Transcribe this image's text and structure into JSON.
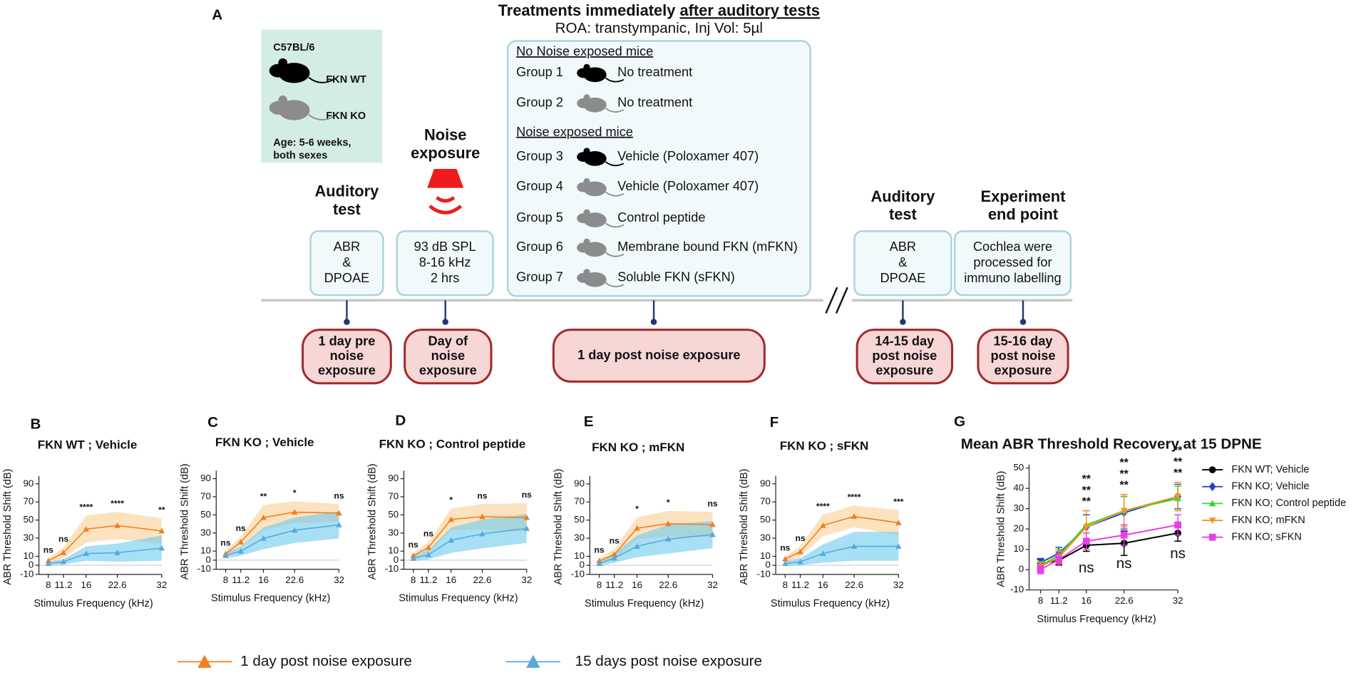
{
  "diagram": {
    "panel": "A",
    "strain": {
      "title": "C57BL/6",
      "wt": "FKN WT",
      "ko": "FKN KO",
      "age": [
        "Age: 5-6 weeks,",
        "both sexes"
      ]
    },
    "pre_test": {
      "heading": [
        "Auditory",
        "test"
      ],
      "box": [
        "ABR",
        "&",
        "DPOAE"
      ],
      "time": [
        "1 day pre",
        "noise",
        "exposure"
      ]
    },
    "noise": {
      "heading": [
        "Noise",
        "exposure"
      ],
      "box": [
        "93 dB SPL",
        "8-16 kHz",
        "2 hrs"
      ],
      "time": [
        "Day of",
        "noise",
        "exposure"
      ]
    },
    "treatments": {
      "title": "Treatments immediately",
      "title_underlined": "after auditory tests",
      "subtitle": "ROA: transtympanic, Inj Vol: 5µl",
      "sections": [
        {
          "heading": "No Noise exposed mice",
          "groups": [
            {
              "label": "Group 1",
              "treatment": "No treatment",
              "mouse": "#000000"
            },
            {
              "label": "Group 2",
              "treatment": "No treatment",
              "mouse": "#8c8c8c"
            }
          ]
        },
        {
          "heading": "Noise exposed mice",
          "groups": [
            {
              "label": "Group 3",
              "treatment": "Vehicle (Poloxamer 407)",
              "mouse": "#000000"
            },
            {
              "label": "Group 4",
              "treatment": "Vehicle (Poloxamer 407)",
              "mouse": "#8c8c8c"
            },
            {
              "label": "Group 5",
              "treatment": "Control peptide",
              "mouse": "#8c8c8c"
            },
            {
              "label": "Group 6",
              "treatment": "Membrane bound FKN (mFKN)",
              "mouse": "#8c8c8c"
            },
            {
              "label": "Group 7",
              "treatment": "Soluble FKN (sFKN)",
              "mouse": "#8c8c8c"
            }
          ]
        }
      ],
      "time": "1 day post noise exposure"
    },
    "post_test": {
      "heading": [
        "Auditory",
        "test"
      ],
      "box": [
        "ABR",
        "&",
        "DPOAE"
      ],
      "time": [
        "14-15 day",
        "post noise",
        "exposure"
      ]
    },
    "end": {
      "heading": [
        "Experiment",
        "end point"
      ],
      "box": [
        "Cochlea were",
        "processed for",
        "immuno labelling"
      ],
      "time": [
        "15-16 day",
        "post noise",
        "exposure"
      ]
    }
  },
  "legend": [
    {
      "name": "1 day post noise exposure",
      "color": "#f07f1f"
    },
    {
      "name": "15 days post noise exposure",
      "color": "#5aa7dd"
    }
  ],
  "chart_data": [
    {
      "type": "line",
      "panel": "B",
      "title": "FKN WT ; Vehicle",
      "x_label": "Stimulus Frequency (kHz)",
      "y_label": "ABR Threshold Shift (dB)",
      "x": [
        8,
        11.2,
        16,
        22.6,
        32
      ],
      "xlim": [
        6,
        32
      ],
      "xticks": [
        8,
        11.2,
        16,
        22.6,
        32
      ],
      "ylim": [
        -10,
        95
      ],
      "yticks": [
        -10,
        0,
        10,
        30,
        50,
        70,
        90
      ],
      "series": [
        {
          "color": "#f07f1f",
          "band": "#fbcf95",
          "values": [
            5,
            14,
            40,
            44,
            38
          ],
          "errors": [
            3,
            6,
            15,
            15,
            14
          ]
        },
        {
          "color": "#5aa7dd",
          "band": "#6ccbef",
          "values": [
            2,
            4,
            13,
            14,
            19
          ],
          "errors": [
            2,
            3,
            8,
            10,
            14
          ]
        }
      ],
      "significance": [
        "ns",
        "ns",
        "****",
        "****",
        "**"
      ]
    },
    {
      "type": "line",
      "panel": "C",
      "title": "FKN KO ; Vehicle",
      "x_label": "Stimulus Frequency (kHz)",
      "y_label": "ABR Threshold Shift (dB)",
      "x": [
        8,
        11.2,
        16,
        22.6,
        32
      ],
      "xlim": [
        6,
        32
      ],
      "xticks": [
        8,
        11.2,
        16,
        22.6,
        32
      ],
      "ylim": [
        -10,
        95
      ],
      "yticks": [
        -10,
        0,
        10,
        30,
        50,
        70,
        90
      ],
      "series": [
        {
          "color": "#f07f1f",
          "band": "#fbcf95",
          "values": [
            7,
            20,
            47,
            53,
            52
          ],
          "errors": [
            3,
            6,
            14,
            12,
            10
          ]
        },
        {
          "color": "#5aa7dd",
          "band": "#6ccbef",
          "values": [
            5,
            10,
            24,
            33,
            39
          ],
          "errors": [
            3,
            5,
            12,
            14,
            15
          ]
        }
      ],
      "significance": [
        "ns",
        "ns",
        "**",
        "*",
        "ns"
      ]
    },
    {
      "type": "line",
      "panel": "D",
      "title": "FKN KO ; Control peptide",
      "x_label": "Stimulus Frequency (kHz)",
      "y_label": "ABR Threshold Shift (dB)",
      "x": [
        8,
        11.2,
        16,
        22.6,
        32
      ],
      "xlim": [
        6,
        32
      ],
      "xticks": [
        8,
        11.2,
        16,
        22.6,
        32
      ],
      "ylim": [
        -10,
        95
      ],
      "yticks": [
        -10,
        0,
        10,
        30,
        50,
        70,
        90
      ],
      "series": [
        {
          "color": "#f07f1f",
          "band": "#fbcf95",
          "values": [
            5,
            14,
            45,
            48,
            47
          ],
          "errors": [
            3,
            6,
            12,
            14,
            16
          ]
        },
        {
          "color": "#5aa7dd",
          "band": "#6ccbef",
          "values": [
            2,
            6,
            22,
            29,
            35
          ],
          "errors": [
            3,
            5,
            14,
            16,
            16
          ]
        }
      ],
      "significance": [
        "ns",
        "ns",
        "*",
        "ns",
        "ns"
      ]
    },
    {
      "type": "line",
      "panel": "E",
      "title": "FKN KO ; mFKN",
      "x_label": "Stimulus Frequency (kHz)",
      "y_label": "ABR Threshold Shift (dB)",
      "x": [
        8,
        11.2,
        16,
        22.6,
        32
      ],
      "xlim": [
        6,
        32
      ],
      "xticks": [
        8,
        11.2,
        16,
        22.6,
        32
      ],
      "ylim": [
        -10,
        95
      ],
      "yticks": [
        -10,
        0,
        10,
        30,
        50,
        70,
        90
      ],
      "series": [
        {
          "color": "#f07f1f",
          "band": "#fbcf95",
          "values": [
            5,
            12,
            41,
            46,
            45
          ],
          "errors": [
            3,
            6,
            12,
            14,
            14
          ]
        },
        {
          "color": "#5aa7dd",
          "band": "#6ccbef",
          "values": [
            2,
            8,
            21,
            29,
            34
          ],
          "errors": [
            3,
            5,
            12,
            16,
            15
          ]
        }
      ],
      "significance": [
        "ns",
        "ns",
        "*",
        "*",
        "ns"
      ]
    },
    {
      "type": "line",
      "panel": "F",
      "title": "FKN KO ; sFKN",
      "x_label": "Stimulus Frequency (kHz)",
      "y_label": "ABR Threshold Shift (dB)",
      "x": [
        8,
        11.2,
        16,
        22.6,
        32
      ],
      "xlim": [
        6,
        32
      ],
      "xticks": [
        8,
        11.2,
        16,
        22.6,
        32
      ],
      "ylim": [
        -10,
        95
      ],
      "yticks": [
        -10,
        0,
        10,
        30,
        50,
        70,
        90
      ],
      "series": [
        {
          "color": "#f07f1f",
          "band": "#fbcf95",
          "values": [
            7,
            15,
            44,
            54,
            47
          ],
          "errors": [
            3,
            6,
            12,
            12,
            14
          ]
        },
        {
          "color": "#5aa7dd",
          "band": "#6ccbef",
          "values": [
            2,
            4,
            13,
            21,
            21
          ],
          "errors": [
            3,
            4,
            10,
            16,
            16
          ]
        }
      ],
      "significance": [
        "ns",
        "ns",
        "****",
        "****",
        "***"
      ]
    },
    {
      "type": "line",
      "panel": "G",
      "title": "Mean ABR Threshold Recovery at 15 DPNE",
      "x_label": "Stimulus Frequency (kHz)",
      "y_label": "ABR Threshold Shift (dB)",
      "x": [
        8,
        11.2,
        16,
        22.6,
        32
      ],
      "xlim": [
        6,
        32
      ],
      "xticks": [
        8,
        11.2,
        16,
        22.6,
        32
      ],
      "ylim": [
        -10,
        50
      ],
      "yticks": [
        -10,
        0,
        10,
        20,
        30,
        40,
        50
      ],
      "series": [
        {
          "name": "FKN WT; Vehicle",
          "color": "#000000",
          "marker": "circle",
          "values": [
            3,
            4.5,
            12,
            13,
            18
          ],
          "errors": [
            2,
            2,
            3,
            6,
            4
          ]
        },
        {
          "name": "FKN KO; Vehicle",
          "color": "#1f3fd6",
          "marker": "diamond",
          "values": [
            3.5,
            8,
            21,
            28,
            36
          ],
          "errors": [
            2,
            3,
            6,
            8,
            6
          ],
          "significance": [
            null,
            null,
            "**",
            "**",
            "**"
          ]
        },
        {
          "name": "FKN KO; Control peptide",
          "color": "#33d633",
          "marker": "triangle",
          "values": [
            2,
            7,
            22,
            29,
            35
          ],
          "errors": [
            2,
            3,
            7,
            7,
            6
          ],
          "significance": [
            null,
            null,
            "**",
            "**",
            "**"
          ]
        },
        {
          "name": "FKN KO; mFKN",
          "color": "#f7931e",
          "marker": "triangle-down",
          "values": [
            1.5,
            6,
            21,
            29,
            36
          ],
          "errors": [
            2,
            3,
            8,
            8,
            7
          ],
          "significance": [
            null,
            null,
            "**",
            "**",
            "**"
          ]
        },
        {
          "name": "FKN KO; sFKN",
          "color": "#e83ee8",
          "marker": "square",
          "values": [
            0,
            5,
            14,
            17,
            22
          ],
          "errors": [
            2,
            3,
            4,
            5,
            5
          ],
          "significance": [
            null,
            null,
            "ns",
            "ns",
            "ns"
          ]
        }
      ]
    }
  ]
}
